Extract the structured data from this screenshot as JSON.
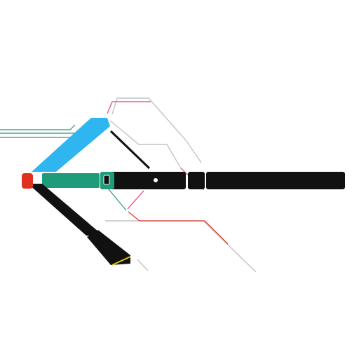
{
  "diagram": {
    "labels": {
      "top_right_1": "",
      "top_right_2": "",
      "top_right_3": "",
      "top_pink_1": "",
      "top_pink_2": "",
      "left_top_1": "",
      "left_top_2": "",
      "left_top_3": "",
      "mid_left": "",
      "mid_right": "",
      "bar_left_text": "",
      "bar_right_text": "",
      "bottom_left_1": "",
      "bottom_left_2": "",
      "bottom_left_3": "",
      "bottom_mid_1": "",
      "bottom_mid_2": "",
      "bottom_mid_3": ""
    },
    "colors": {
      "blue_segment": "#2fb5f0",
      "green_segment": "#1e9b78",
      "black_segment": "#111111",
      "pink_line": "#e85c8c",
      "red_line": "#e23b2b",
      "yellow_accent": "#e6c619",
      "red_terminal": "#e0301e",
      "grey_line": "#bcbcbc"
    },
    "icons": [
      "terminal-node-icon",
      "junction-dot-icon"
    ]
  }
}
